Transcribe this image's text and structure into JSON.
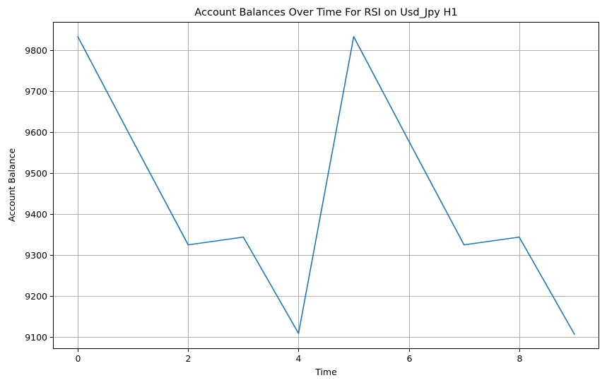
{
  "chart_data": {
    "type": "line",
    "title": "Account Balances Over Time For RSI on Usd_Jpy H1",
    "xlabel": "Time",
    "ylabel": "Account Balance",
    "x": [
      0,
      1,
      2,
      3,
      4,
      5,
      6,
      7,
      8,
      9
    ],
    "series": [
      {
        "values": [
          9833,
          9578,
          9325,
          9344,
          9109,
          9833,
          9578,
          9325,
          9344,
          9107
        ],
        "color": "#1f77b4"
      }
    ],
    "xticks": [
      0,
      2,
      4,
      6,
      8
    ],
    "yticks": [
      9100,
      9200,
      9300,
      9400,
      9500,
      9600,
      9700,
      9800
    ],
    "xlim": [
      -0.45,
      9.45
    ],
    "ylim": [
      9071,
      9869
    ],
    "grid": true,
    "legend": "none"
  }
}
